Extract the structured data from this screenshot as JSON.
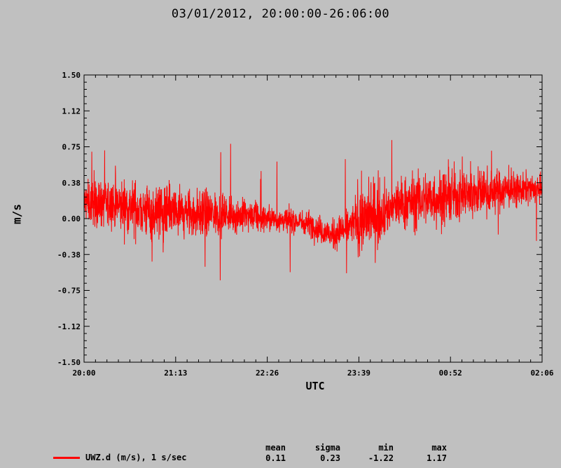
{
  "chart_data": {
    "type": "line",
    "title": "03/01/2012, 20:00:00-26:06:00",
    "xlabel": "UTC",
    "ylabel": "m/s",
    "ylim": [
      -1.5,
      1.5
    ],
    "xlim": [
      "20:00",
      "02:06"
    ],
    "y_ticks": [
      "1.50",
      "1.12",
      "0.75",
      "0.38",
      "0.00",
      "-0.38",
      "-0.75",
      "-1.12",
      "-1.50"
    ],
    "x_ticks": [
      "20:00",
      "21:13",
      "22:26",
      "23:39",
      "00:52",
      "02:06"
    ],
    "grid": false,
    "series": [
      {
        "name": "UWZ.d (m/s), 1 s/sec",
        "color": "#ff0000",
        "x_hours": [
          0.0,
          0.3,
          0.6,
          0.9,
          1.2,
          1.5,
          1.8,
          2.1,
          2.4,
          2.7,
          3.0,
          3.3,
          3.6,
          3.9,
          4.2,
          4.5,
          4.8,
          5.1,
          5.4,
          5.7,
          6.0,
          6.1
        ],
        "trend": [
          0.17,
          0.15,
          0.12,
          0.07,
          0.05,
          0.05,
          0.05,
          0.03,
          0.0,
          -0.02,
          -0.05,
          -0.18,
          -0.05,
          0.05,
          0.15,
          0.2,
          0.22,
          0.27,
          0.28,
          0.3,
          0.3,
          0.3
        ]
      }
    ],
    "stats": {
      "headers": [
        "mean",
        "sigma",
        "min",
        "max"
      ],
      "values": [
        "0.11",
        "0.23",
        "-1.22",
        "1.17"
      ]
    }
  }
}
